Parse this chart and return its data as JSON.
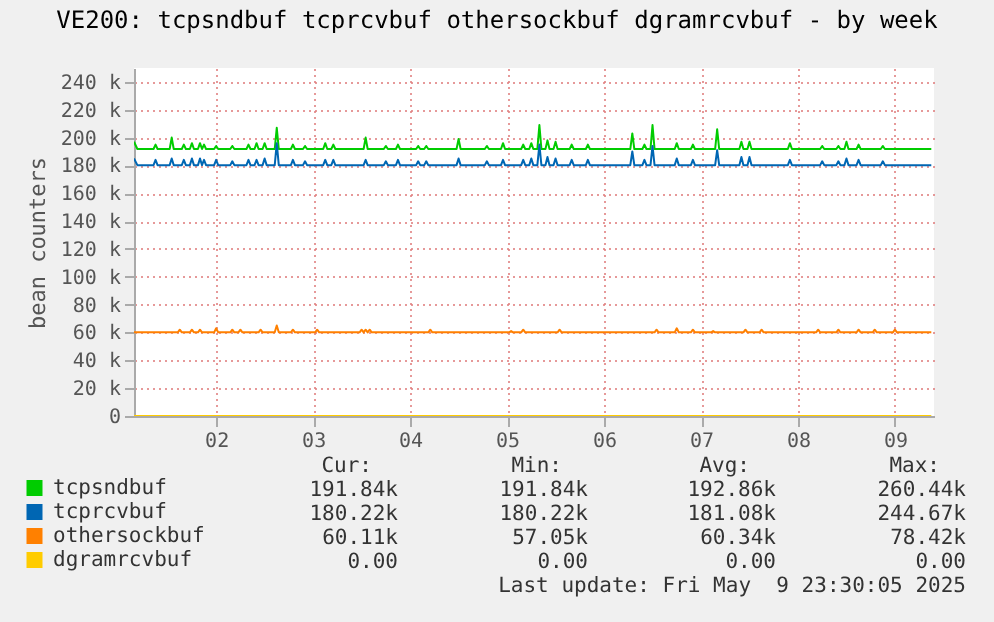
{
  "chart_data": {
    "type": "line",
    "title": "VE200: tcpsndbuf tcprcvbuf othersockbuf dgramrcvbuf - by week",
    "ylabel": "bean counters",
    "xlim": [
      "2025-05-01T03:40",
      "2025-05-09T09:40"
    ],
    "xticks": [
      {
        "value": "2025-05-02T00:00",
        "label": "02"
      },
      {
        "value": "2025-05-03T00:00",
        "label": "03"
      },
      {
        "value": "2025-05-04T00:00",
        "label": "04"
      },
      {
        "value": "2025-05-05T00:00",
        "label": "05"
      },
      {
        "value": "2025-05-06T00:00",
        "label": "06"
      },
      {
        "value": "2025-05-07T00:00",
        "label": "07"
      },
      {
        "value": "2025-05-08T00:00",
        "label": "08"
      },
      {
        "value": "2025-05-09T00:00",
        "label": "09"
      }
    ],
    "ylim": [
      0,
      250
    ],
    "yticks": [
      0,
      {
        "value": 20,
        "label": "20 k"
      },
      {
        "value": 40,
        "label": "40 k"
      },
      {
        "value": 60,
        "label": "60 k"
      },
      {
        "value": 80,
        "label": "80 k"
      },
      {
        "value": 100,
        "label": "100 k"
      },
      {
        "value": 120,
        "label": "120 k"
      },
      {
        "value": 140,
        "label": "140 k"
      },
      {
        "value": 160,
        "label": "160 k"
      },
      {
        "value": 180,
        "label": "180 k"
      },
      {
        "value": 200,
        "label": "200 k"
      },
      {
        "value": 220,
        "label": "220 k"
      },
      {
        "value": 240,
        "label": "240 k"
      }
    ],
    "grid": true,
    "legend": "bottom left",
    "line_style": "solid",
    "x": [
      "2025-05-01T03:40",
      "2025-05-01T04:30",
      "2025-05-01T08:30",
      "2025-05-01T09:00",
      "2025-05-01T09:30",
      "2025-05-01T12:30",
      "2025-05-01T13:00",
      "2025-05-01T13:30",
      "2025-05-01T15:30",
      "2025-05-01T16:00",
      "2025-05-01T16:30",
      "2025-05-01T17:30",
      "2025-05-01T18:00",
      "2025-05-01T18:30",
      "2025-05-01T19:30",
      "2025-05-01T20:00",
      "2025-05-01T20:30",
      "2025-05-01T21:00",
      "2025-05-01T21:30",
      "2025-05-01T23:30",
      "2025-05-02T00:00",
      "2025-05-02T00:30",
      "2025-05-02T03:30",
      "2025-05-02T04:00",
      "2025-05-02T04:30",
      "2025-05-02T07:30",
      "2025-05-02T08:00",
      "2025-05-02T08:30",
      "2025-05-02T09:30",
      "2025-05-02T10:00",
      "2025-05-02T10:30",
      "2025-05-02T11:30",
      "2025-05-02T12:00",
      "2025-05-02T12:30",
      "2025-05-02T14:30",
      "2025-05-02T15:00",
      "2025-05-02T15:30",
      "2025-05-02T18:30",
      "2025-05-02T19:00",
      "2025-05-02T19:30",
      "2025-05-02T21:30",
      "2025-05-02T22:00",
      "2025-05-02T22:30",
      "2025-05-03T02:30",
      "2025-05-03T03:00",
      "2025-05-03T03:30",
      "2025-05-03T04:30",
      "2025-05-03T05:00",
      "2025-05-03T05:30",
      "2025-05-03T12:30",
      "2025-05-03T13:00",
      "2025-05-03T13:30",
      "2025-05-03T17:30",
      "2025-05-03T18:00",
      "2025-05-03T18:30",
      "2025-05-03T20:30",
      "2025-05-03T21:00",
      "2025-05-03T21:30",
      "2025-05-04T01:30",
      "2025-05-04T02:00",
      "2025-05-04T02:30",
      "2025-05-04T03:30",
      "2025-05-04T04:00",
      "2025-05-04T04:30",
      "2025-05-04T11:30",
      "2025-05-04T12:00",
      "2025-05-04T12:30",
      "2025-05-04T18:30",
      "2025-05-04T19:00",
      "2025-05-04T19:30",
      "2025-05-04T22:30",
      "2025-05-04T23:00",
      "2025-05-04T23:30",
      "2025-05-05T03:30",
      "2025-05-05T04:00",
      "2025-05-05T04:30",
      "2025-05-05T05:30",
      "2025-05-05T06:00",
      "2025-05-05T06:30",
      "2025-05-05T07:30",
      "2025-05-05T08:00",
      "2025-05-05T08:30",
      "2025-05-05T09:30",
      "2025-05-05T10:00",
      "2025-05-05T10:30",
      "2025-05-05T11:30",
      "2025-05-05T12:00",
      "2025-05-05T12:30",
      "2025-05-05T15:30",
      "2025-05-05T16:00",
      "2025-05-05T16:30",
      "2025-05-05T19:30",
      "2025-05-05T20:00",
      "2025-05-05T20:30",
      "2025-05-06T06:30",
      "2025-05-06T07:00",
      "2025-05-06T07:30",
      "2025-05-06T09:30",
      "2025-05-06T10:00",
      "2025-05-06T10:30",
      "2025-05-06T11:30",
      "2025-05-06T12:00",
      "2025-05-06T12:30",
      "2025-05-06T17:30",
      "2025-05-06T18:00",
      "2025-05-06T18:30",
      "2025-05-06T21:30",
      "2025-05-06T22:00",
      "2025-05-06T22:30",
      "2025-05-07T03:30",
      "2025-05-07T04:00",
      "2025-05-07T04:30",
      "2025-05-07T09:30",
      "2025-05-07T10:00",
      "2025-05-07T10:30",
      "2025-05-07T11:30",
      "2025-05-07T12:00",
      "2025-05-07T12:30",
      "2025-05-07T21:30",
      "2025-05-07T22:00",
      "2025-05-07T22:30",
      "2025-05-08T05:30",
      "2025-05-08T06:00",
      "2025-05-08T06:30",
      "2025-05-08T09:30",
      "2025-05-08T10:00",
      "2025-05-08T10:30",
      "2025-05-08T11:30",
      "2025-05-08T12:00",
      "2025-05-08T12:30",
      "2025-05-08T14:30",
      "2025-05-08T15:00",
      "2025-05-08T15:30",
      "2025-05-08T20:30",
      "2025-05-08T21:00",
      "2025-05-08T21:30",
      "2025-05-09T09:00"
    ],
    "series": [
      {
        "name": "tcpsndbuf",
        "color": "#00cc00",
        "values": [
          197,
          191.8,
          191.8,
          195,
          191.8,
          191.8,
          200,
          191.8,
          191.8,
          195,
          191.8,
          191.8,
          196,
          191.8,
          191.8,
          196,
          191.8,
          195,
          191.8,
          191.8,
          194,
          191.8,
          191.8,
          194,
          191.8,
          191.8,
          195,
          191.8,
          191.8,
          196,
          191.8,
          191.8,
          196,
          191.8,
          191.8,
          207,
          191.8,
          191.8,
          195,
          191.8,
          191.8,
          194,
          191.8,
          191.8,
          196,
          191.8,
          191.8,
          195,
          191.8,
          191.8,
          200,
          191.8,
          191.8,
          194,
          191.8,
          191.8,
          195,
          191.8,
          191.8,
          194,
          191.8,
          191.8,
          194,
          191.8,
          191.8,
          199,
          191.8,
          191.8,
          194,
          191.8,
          191.8,
          196,
          191.8,
          191.8,
          195,
          191.8,
          191.8,
          196,
          191.8,
          191.8,
          209,
          191.8,
          191.8,
          198,
          191.8,
          191.8,
          197,
          191.8,
          191.8,
          195,
          191.8,
          191.8,
          195,
          191.8,
          191.8,
          203,
          191.8,
          191.8,
          195,
          191.8,
          191.8,
          209,
          191.8,
          191.8,
          196,
          191.8,
          191.8,
          195,
          191.8,
          191.8,
          206,
          191.8,
          191.8,
          197,
          191.8,
          191.8,
          197,
          191.8,
          191.8,
          196,
          191.8,
          191.8,
          194,
          191.8,
          191.8,
          194,
          191.8,
          191.8,
          197,
          191.8,
          191.8,
          195,
          191.8,
          191.8,
          194,
          191.8,
          191.8
        ]
      },
      {
        "name": "tcprcvbuf",
        "color": "#0066b3",
        "values": [
          185,
          180.2,
          180.2,
          184,
          180.2,
          180.2,
          185,
          180.2,
          180.2,
          184,
          180.2,
          180.2,
          185,
          180.2,
          180.2,
          185,
          180.2,
          184,
          180.2,
          180.2,
          184,
          180.2,
          180.2,
          183,
          180.2,
          180.2,
          184,
          180.2,
          180.2,
          184,
          180.2,
          180.2,
          185,
          180.2,
          180.2,
          196,
          180.2,
          180.2,
          184,
          180.2,
          180.2,
          183,
          180.2,
          180.2,
          184,
          180.2,
          180.2,
          184,
          180.2,
          180.2,
          184,
          180.2,
          180.2,
          183,
          180.2,
          180.2,
          184,
          180.2,
          180.2,
          183,
          180.2,
          180.2,
          183,
          180.2,
          180.2,
          185,
          180.2,
          180.2,
          183,
          180.2,
          180.2,
          184,
          180.2,
          180.2,
          184,
          180.2,
          180.2,
          185,
          180.2,
          180.2,
          195,
          180.2,
          180.2,
          186,
          180.2,
          180.2,
          185,
          180.2,
          180.2,
          184,
          180.2,
          180.2,
          184,
          180.2,
          180.2,
          190,
          180.2,
          180.2,
          184,
          180.2,
          180.2,
          194,
          180.2,
          180.2,
          185,
          180.2,
          180.2,
          184,
          180.2,
          180.2,
          191,
          180.2,
          180.2,
          186,
          180.2,
          180.2,
          186,
          180.2,
          180.2,
          184,
          180.2,
          180.2,
          183,
          180.2,
          180.2,
          183,
          180.2,
          180.2,
          185,
          180.2,
          180.2,
          184,
          180.2,
          180.2,
          183,
          180.2,
          180.2
        ]
      },
      {
        "name": "othersockbuf",
        "color": "#ff8000",
        "x": [
          "2025-05-01T03:40",
          "2025-05-01T14:30",
          "2025-05-01T15:00",
          "2025-05-01T15:30",
          "2025-05-01T17:30",
          "2025-05-01T18:00",
          "2025-05-01T18:30",
          "2025-05-01T19:30",
          "2025-05-01T20:00",
          "2025-05-01T20:30",
          "2025-05-01T23:30",
          "2025-05-02T00:00",
          "2025-05-02T00:30",
          "2025-05-02T03:30",
          "2025-05-02T04:00",
          "2025-05-02T04:30",
          "2025-05-02T05:30",
          "2025-05-02T06:00",
          "2025-05-02T06:30",
          "2025-05-02T10:30",
          "2025-05-02T11:00",
          "2025-05-02T11:30",
          "2025-05-02T14:30",
          "2025-05-02T15:00",
          "2025-05-02T15:30",
          "2025-05-02T18:30",
          "2025-05-02T19:00",
          "2025-05-02T19:30",
          "2025-05-03T00:30",
          "2025-05-03T01:00",
          "2025-05-03T01:30",
          "2025-05-03T11:30",
          "2025-05-03T12:00",
          "2025-05-03T12:30",
          "2025-05-03T13:00",
          "2025-05-03T13:30",
          "2025-05-03T14:00",
          "2025-05-03T14:30",
          "2025-05-04T04:30",
          "2025-05-04T05:00",
          "2025-05-04T05:30",
          "2025-05-05T00:30",
          "2025-05-05T01:00",
          "2025-05-05T01:30",
          "2025-05-05T03:30",
          "2025-05-05T04:00",
          "2025-05-05T04:30",
          "2025-05-05T12:30",
          "2025-05-05T13:00",
          "2025-05-05T13:30",
          "2025-05-06T12:30",
          "2025-05-06T13:00",
          "2025-05-06T13:30",
          "2025-05-06T17:30",
          "2025-05-06T18:00",
          "2025-05-06T18:30",
          "2025-05-06T21:30",
          "2025-05-06T22:00",
          "2025-05-06T22:30",
          "2025-05-07T02:30",
          "2025-05-07T03:00",
          "2025-05-07T03:30",
          "2025-05-07T10:30",
          "2025-05-07T11:00",
          "2025-05-07T11:30",
          "2025-05-07T14:30",
          "2025-05-07T15:00",
          "2025-05-07T15:30",
          "2025-05-08T04:30",
          "2025-05-08T05:00",
          "2025-05-08T05:30",
          "2025-05-08T09:30",
          "2025-05-08T10:00",
          "2025-05-08T10:30",
          "2025-05-08T14:30",
          "2025-05-08T15:00",
          "2025-05-08T15:30",
          "2025-05-08T18:30",
          "2025-05-08T19:00",
          "2025-05-08T19:30",
          "2025-05-08T23:30",
          "2025-05-09T00:00",
          "2025-05-09T00:30",
          "2025-05-09T09:00"
        ],
        "values": [
          60.1,
          60.1,
          62,
          60.1,
          60.1,
          62,
          60.1,
          60.1,
          62,
          60.1,
          60.1,
          63,
          60.1,
          60.1,
          62,
          60.1,
          60.1,
          62,
          60.1,
          60.1,
          62,
          60.1,
          60.1,
          65,
          60.1,
          60.1,
          62,
          60.1,
          60.1,
          62,
          60.1,
          60.1,
          62,
          60.1,
          62,
          60.1,
          62,
          60.1,
          60.1,
          62,
          60.1,
          60.1,
          61,
          60.1,
          60.1,
          62,
          60.1,
          60.1,
          62,
          60.1,
          60.1,
          62,
          60.1,
          60.1,
          63,
          60.1,
          60.1,
          62,
          60.1,
          60.1,
          61,
          60.1,
          60.1,
          62,
          60.1,
          60.1,
          62,
          60.1,
          60.1,
          62,
          60.1,
          60.1,
          62,
          60.1,
          60.1,
          62,
          60.1,
          60.1,
          62,
          60.1,
          60.1,
          62,
          60.1,
          60.1
        ]
      },
      {
        "name": "dgramrcvbuf",
        "color": "#ffcc00",
        "x": [
          "2025-05-01T03:40",
          "2025-05-09T09:00"
        ],
        "values": [
          0,
          0
        ]
      }
    ],
    "annotations": [
      "Cur:",
      "Min:",
      "Avg:",
      "Max:",
      "191.84k",
      "191.84k",
      "192.86k",
      "260.44k",
      "180.22k",
      "180.22k",
      "181.08k",
      "244.67k",
      "60.11k",
      "57.05k",
      "60.34k",
      "78.42k",
      "0.00",
      "0.00",
      "0.00",
      "0.00",
      "Last update: Fri May  9 23:30:05 2025"
    ]
  }
}
